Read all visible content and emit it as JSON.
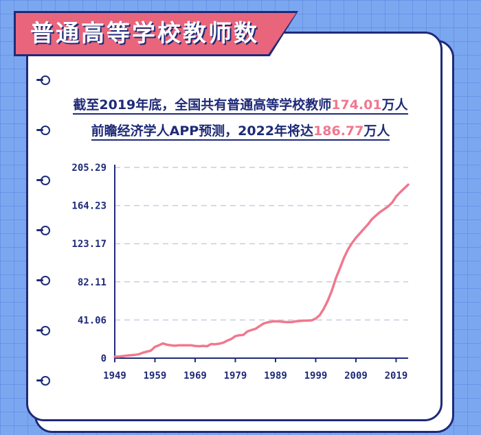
{
  "title": "普通高等学校教师数",
  "headline": {
    "line1_prefix": "截至2019年底，全国共有普通高等学校教师",
    "line1_value": "174.01",
    "line1_suffix": "万人",
    "line2_prefix": "前瞻经济学人APP预测，2022年将达",
    "line2_value": "186.77",
    "line2_suffix": "万人"
  },
  "colors": {
    "background": "#7BA7F0",
    "navy": "#1E2A78",
    "accent_pink": "#E8657C",
    "line": "#F0788E"
  },
  "chart_data": {
    "type": "line",
    "title": "",
    "xlabel": "",
    "ylabel": "",
    "xlim": [
      1949,
      2022
    ],
    "ylim": [
      0,
      205.29
    ],
    "y_ticks": [
      "0",
      "41.06",
      "82.11",
      "123.17",
      "164.23",
      "205.29"
    ],
    "x_ticks": [
      "1949",
      "1959",
      "1969",
      "1979",
      "1989",
      "1999",
      "2009",
      "2019"
    ],
    "grid": "horizontal dashed",
    "series": [
      {
        "name": "",
        "x": [
          1949,
          1950,
          1951,
          1952,
          1953,
          1954,
          1955,
          1956,
          1957,
          1958,
          1959,
          1960,
          1961,
          1962,
          1963,
          1964,
          1965,
          1966,
          1967,
          1968,
          1969,
          1970,
          1971,
          1972,
          1973,
          1974,
          1975,
          1976,
          1977,
          1978,
          1979,
          1980,
          1981,
          1982,
          1983,
          1984,
          1985,
          1986,
          1987,
          1988,
          1989,
          1990,
          1991,
          1992,
          1993,
          1994,
          1995,
          1996,
          1997,
          1998,
          1999,
          2000,
          2001,
          2002,
          2003,
          2004,
          2005,
          2006,
          2007,
          2008,
          2009,
          2010,
          2011,
          2012,
          2013,
          2014,
          2015,
          2016,
          2017,
          2018,
          2019,
          2020,
          2021,
          2022
        ],
        "y": [
          1.61,
          1.72,
          2.19,
          2.72,
          3.12,
          3.54,
          4.23,
          5.84,
          7.01,
          8.14,
          12.18,
          13.85,
          15.86,
          14.47,
          13.78,
          13.38,
          13.81,
          13.81,
          13.81,
          13.81,
          13.15,
          12.88,
          13.19,
          12.86,
          15.2,
          15.0,
          15.6,
          16.7,
          18.9,
          20.62,
          23.7,
          24.68,
          25.0,
          28.7,
          30.27,
          31.5,
          34.4,
          37.2,
          38.5,
          39.3,
          39.7,
          39.5,
          39.1,
          38.8,
          38.8,
          39.6,
          40.1,
          40.3,
          40.5,
          40.7,
          42.6,
          46.3,
          53.2,
          61.8,
          72.5,
          85.8,
          96.6,
          107.6,
          116.8,
          123.7,
          129.5,
          134.3,
          139.3,
          144.0,
          149.7,
          153.5,
          157.3,
          160.2,
          163.3,
          167.3,
          174.01,
          178.5,
          182.6,
          186.77
        ]
      }
    ]
  }
}
